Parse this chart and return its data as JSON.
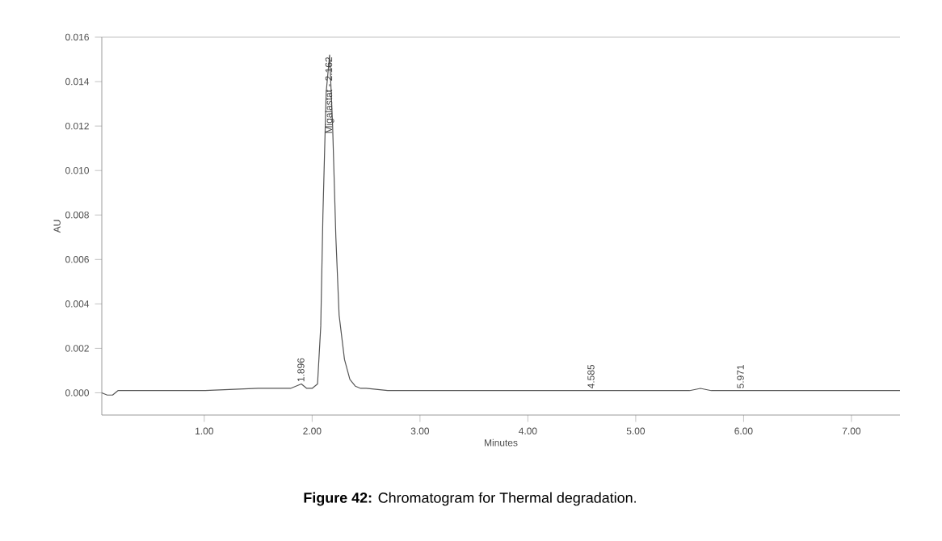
{
  "chart_data": {
    "type": "line",
    "title": "**Figure 42:** Chromatogram for Thermal degradation.",
    "xlabel": "Minutes",
    "ylabel": "AU",
    "x": [
      0.05,
      0.1,
      0.15,
      0.2,
      0.3,
      0.5,
      1.0,
      1.5,
      1.8,
      1.85,
      1.9,
      1.95,
      2.0,
      2.05,
      2.08,
      2.1,
      2.13,
      2.162,
      2.19,
      2.22,
      2.25,
      2.3,
      2.35,
      2.4,
      2.45,
      2.5,
      2.7,
      3.0,
      4.0,
      4.5,
      4.6,
      4.7,
      5.5,
      5.6,
      5.7,
      5.97,
      6.5,
      7.0,
      7.45
    ],
    "series": [
      {
        "color": "#555555",
        "values": [
          0,
          -0.0001,
          -0.0001,
          0.0001,
          0.0001,
          0.0001,
          0.0001,
          0.0002,
          0.0002,
          0.0003,
          0.0004,
          0.0002,
          0.0002,
          0.0004,
          0.003,
          0.008,
          0.0135,
          0.0152,
          0.012,
          0.007,
          0.0035,
          0.0015,
          0.0006,
          0.0003,
          0.0002,
          0.0002,
          0.0001,
          0.0001,
          0.0001,
          0.0001,
          0.0001,
          0.0001,
          0.0001,
          0.0002,
          0.0001,
          0.0001,
          0.0001,
          0.0001,
          0.0001
        ]
      }
    ],
    "xlim": [
      0.05,
      7.45
    ],
    "ylim": [
      -0.001,
      0.016
    ],
    "xticks": [
      {
        "value": 1,
        "label": "1.00"
      },
      {
        "value": 2,
        "label": "2.00"
      },
      {
        "value": 3,
        "label": "3.00"
      },
      {
        "value": 4,
        "label": "4.00"
      },
      {
        "value": 5,
        "label": "5.00"
      },
      {
        "value": 6,
        "label": "6.00"
      },
      {
        "value": 7,
        "label": "7.00"
      }
    ],
    "yticks": [
      {
        "value": 0,
        "label": "0.000"
      },
      {
        "value": 0.002,
        "label": "0.002"
      },
      {
        "value": 0.004,
        "label": "0.004"
      },
      {
        "value": 0.006,
        "label": "0.006"
      },
      {
        "value": 0.008,
        "label": "0.008"
      },
      {
        "value": 0.01,
        "label": "0.010"
      },
      {
        "value": 0.012,
        "label": "0.012"
      },
      {
        "value": 0.014,
        "label": "0.014"
      },
      {
        "value": 0.016,
        "label": "0.016"
      }
    ],
    "annotations": [
      {
        "text": "1.896",
        "x": 1.896,
        "y": 0.0004
      },
      {
        "text": "Migalastat - 2.162",
        "x": 2.162,
        "y": 0.0152
      },
      {
        "text": "4.585",
        "x": 4.585,
        "y": 0.0001
      },
      {
        "text": "5.971",
        "x": 5.971,
        "y": 0.0001
      }
    ]
  }
}
